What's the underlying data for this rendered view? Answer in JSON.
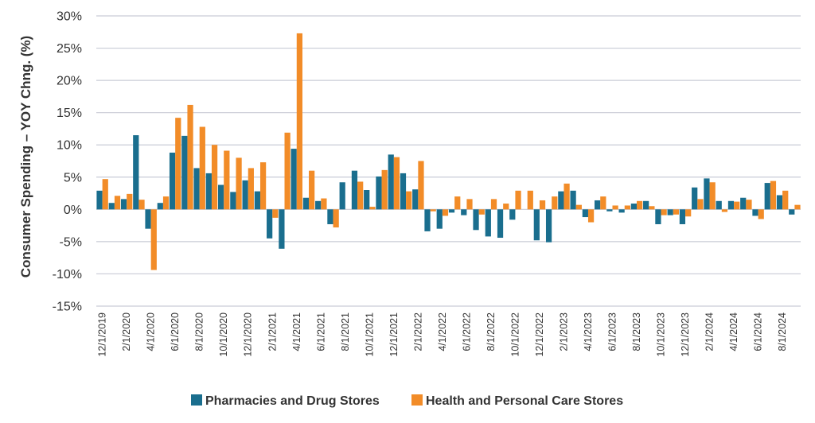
{
  "chart_data": {
    "type": "bar",
    "title": "",
    "xlabel": "",
    "ylabel": "Consumer Spending – YOY Chng. (%)",
    "ylim": [
      -15,
      30
    ],
    "yticks": [
      -15,
      -10,
      -5,
      0,
      5,
      10,
      15,
      20,
      25,
      30
    ],
    "ytick_labels": [
      "-15%",
      "-10%",
      "-5%",
      "0%",
      "5%",
      "10%",
      "15%",
      "20%",
      "25%",
      "30%"
    ],
    "grid": true,
    "legend": "bottom",
    "categories": [
      "12/1/2019",
      "1/1/2020",
      "2/1/2020",
      "3/1/2020",
      "4/1/2020",
      "5/1/2020",
      "6/1/2020",
      "7/1/2020",
      "8/1/2020",
      "9/1/2020",
      "10/1/2020",
      "11/1/2020",
      "12/1/2020",
      "1/1/2021",
      "2/1/2021",
      "3/1/2021",
      "4/1/2021",
      "5/1/2021",
      "6/1/2021",
      "7/1/2021",
      "8/1/2021",
      "9/1/2021",
      "10/1/2021",
      "11/1/2021",
      "12/1/2021",
      "1/1/2022",
      "2/1/2022",
      "3/1/2022",
      "4/1/2022",
      "5/1/2022",
      "6/1/2022",
      "7/1/2022",
      "8/1/2022",
      "9/1/2022",
      "10/1/2022",
      "11/1/2022",
      "12/1/2022",
      "1/1/2023",
      "2/1/2023",
      "3/1/2023",
      "4/1/2023",
      "5/1/2023",
      "6/1/2023",
      "7/1/2023",
      "8/1/2023",
      "9/1/2023",
      "10/1/2023",
      "11/1/2023",
      "12/1/2023",
      "1/1/2024",
      "2/1/2024",
      "3/1/2024",
      "4/1/2024",
      "5/1/2024",
      "6/1/2024",
      "7/1/2024",
      "8/1/2024",
      "9/1/2024"
    ],
    "xtick_labels": [
      "12/1/2019",
      "2/1/2020",
      "4/1/2020",
      "6/1/2020",
      "8/1/2020",
      "10/1/2020",
      "12/1/2020",
      "2/1/2021",
      "4/1/2021",
      "6/1/2021",
      "8/1/2021",
      "10/1/2021",
      "12/1/2021",
      "2/1/2022",
      "4/1/2022",
      "6/1/2022",
      "8/1/2022",
      "10/1/2022",
      "12/1/2022",
      "2/1/2023",
      "4/1/2023",
      "6/1/2023",
      "8/1/2023",
      "10/1/2023",
      "12/1/2023",
      "2/1/2024",
      "4/1/2024",
      "6/1/2024",
      "8/1/2024"
    ],
    "series": [
      {
        "name": "Pharmacies and Drug Stores",
        "color": "#1a6e8e",
        "values": [
          2.9,
          1.0,
          1.6,
          11.5,
          -3.0,
          1.0,
          8.8,
          11.4,
          6.4,
          5.6,
          3.8,
          2.7,
          4.5,
          2.8,
          -4.5,
          -6.1,
          9.4,
          1.8,
          1.3,
          -2.3,
          4.2,
          6.0,
          3.0,
          5.1,
          8.5,
          5.6,
          3.1,
          -3.4,
          -3.0,
          -0.5,
          -0.9,
          -3.2,
          -4.2,
          -4.4,
          -1.6,
          0.0,
          -4.8,
          -5.1,
          2.8,
          2.9,
          -1.2,
          1.4,
          -0.3,
          -0.5,
          0.9,
          1.3,
          -2.3,
          -0.9,
          -2.3,
          3.4,
          4.8,
          1.3,
          1.3,
          1.8,
          -1.0,
          4.1,
          2.2,
          -0.8
        ]
      },
      {
        "name": "Health and Personal Care Stores",
        "color": "#f28c28",
        "values": [
          4.7,
          2.1,
          2.4,
          1.5,
          -9.4,
          2.0,
          14.2,
          16.2,
          12.8,
          10.0,
          9.1,
          8.0,
          6.4,
          7.3,
          -1.3,
          11.9,
          27.3,
          6.0,
          1.7,
          -2.8,
          0.0,
          4.3,
          0.4,
          6.1,
          8.1,
          2.8,
          7.5,
          -0.3,
          -1.0,
          2.0,
          1.6,
          -0.8,
          1.6,
          0.9,
          2.9,
          2.9,
          1.4,
          2.0,
          4.0,
          0.7,
          -2.0,
          2.0,
          0.6,
          0.6,
          1.3,
          0.5,
          -0.9,
          -0.8,
          -1.1,
          1.6,
          4.2,
          -0.4,
          1.2,
          1.5,
          -1.5,
          4.4,
          2.9,
          0.7
        ]
      }
    ]
  }
}
